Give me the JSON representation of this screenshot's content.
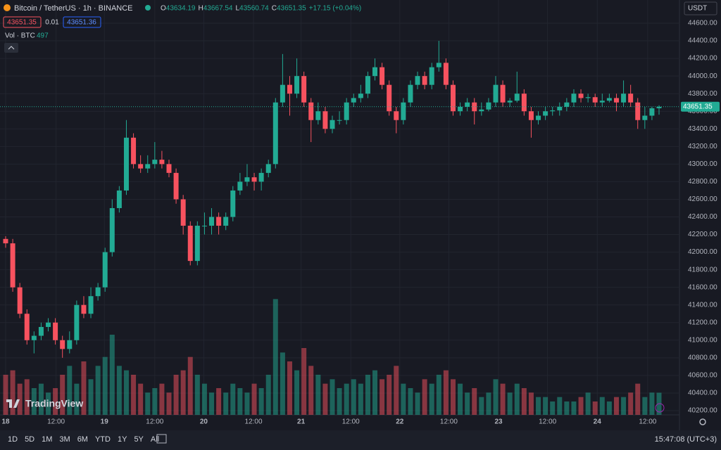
{
  "header": {
    "symbol": "Bitcoin / TetherUS · 1h · BINANCE",
    "ohlc_labels": [
      "O",
      "H",
      "L",
      "C"
    ],
    "change": "+17.15 (+0.04%)",
    "bid": "43651.35",
    "spread": "0.01",
    "ask": "43651.36",
    "volume_label": "Vol · BTC",
    "currency": "USDT"
  },
  "chart_data": {
    "type": "candlestick",
    "up_color": "#22ab94",
    "down_color": "#f7525f",
    "ohlc": [
      [
        42150,
        42180,
        42050,
        42100
      ],
      [
        42100,
        42150,
        41550,
        41600
      ],
      [
        41600,
        41650,
        41250,
        41300
      ],
      [
        41300,
        41350,
        40950,
        41000
      ],
      [
        41000,
        41100,
        40850,
        41050
      ],
      [
        41050,
        41200,
        41000,
        41150
      ],
      [
        41150,
        41250,
        41100,
        41200
      ],
      [
        41200,
        41250,
        40950,
        41000
      ],
      [
        41000,
        41050,
        40800,
        40900
      ],
      [
        40900,
        41100,
        40850,
        41000
      ],
      [
        41000,
        41450,
        40950,
        41400
      ],
      [
        41400,
        41500,
        41250,
        41300
      ],
      [
        41300,
        41600,
        41250,
        41500
      ],
      [
        41500,
        41650,
        41450,
        41600
      ],
      [
        41600,
        42050,
        41550,
        42000
      ],
      [
        42000,
        42600,
        41950,
        42500
      ],
      [
        42500,
        42750,
        42450,
        42700
      ],
      [
        42700,
        43500,
        42650,
        43300
      ],
      [
        43300,
        43350,
        42950,
        43000
      ],
      [
        43000,
        43100,
        42900,
        42950
      ],
      [
        42950,
        43100,
        42900,
        43000
      ],
      [
        43000,
        43250,
        42950,
        43050
      ],
      [
        43050,
        43150,
        42950,
        43000
      ],
      [
        43000,
        43050,
        42850,
        42900
      ],
      [
        42900,
        42950,
        42550,
        42600
      ],
      [
        42600,
        42650,
        42200,
        42300
      ],
      [
        42300,
        42350,
        41850,
        41900
      ],
      [
        41900,
        42350,
        41850,
        42300
      ],
      [
        42300,
        42450,
        42200,
        42300
      ],
      [
        42300,
        42500,
        42200,
        42400
      ],
      [
        42400,
        42450,
        42200,
        42300
      ],
      [
        42300,
        42450,
        42250,
        42400
      ],
      [
        42400,
        42750,
        42350,
        42700
      ],
      [
        42700,
        42900,
        42650,
        42800
      ],
      [
        42800,
        43000,
        42750,
        42850
      ],
      [
        42850,
        42900,
        42700,
        42800
      ],
      [
        42800,
        42950,
        42700,
        42900
      ],
      [
        42900,
        43050,
        42850,
        43000
      ],
      [
        43000,
        43750,
        42950,
        43700
      ],
      [
        43700,
        44250,
        43650,
        43900
      ],
      [
        43900,
        44000,
        43550,
        43800
      ],
      [
        43800,
        44200,
        43750,
        44000
      ],
      [
        44000,
        44050,
        43650,
        43700
      ],
      [
        43700,
        43750,
        43250,
        43500
      ],
      [
        43500,
        43700,
        43450,
        43600
      ],
      [
        43600,
        43650,
        43350,
        43400
      ],
      [
        43400,
        43550,
        43350,
        43500
      ],
      [
        43500,
        43600,
        43450,
        43500
      ],
      [
        43500,
        43750,
        43450,
        43700
      ],
      [
        43700,
        43800,
        43650,
        43750
      ],
      [
        43750,
        43900,
        43700,
        43800
      ],
      [
        43800,
        44050,
        43750,
        44000
      ],
      [
        44000,
        44200,
        43950,
        44100
      ],
      [
        44100,
        44150,
        43850,
        43900
      ],
      [
        43900,
        43950,
        43550,
        43600
      ],
      [
        43600,
        43650,
        43350,
        43500
      ],
      [
        43500,
        43750,
        43450,
        43700
      ],
      [
        43700,
        43950,
        43650,
        43900
      ],
      [
        43900,
        44050,
        43850,
        44000
      ],
      [
        44000,
        44050,
        43850,
        43900
      ],
      [
        43900,
        44150,
        43850,
        44100
      ],
      [
        44100,
        44400,
        44050,
        44150
      ],
      [
        44150,
        44200,
        43850,
        43900
      ],
      [
        43900,
        43950,
        43550,
        43600
      ],
      [
        43600,
        43700,
        43550,
        43650
      ],
      [
        43650,
        43750,
        43600,
        43700
      ],
      [
        43700,
        43750,
        43450,
        43600
      ],
      [
        43600,
        43700,
        43550,
        43620
      ],
      [
        43620,
        43750,
        43600,
        43700
      ],
      [
        43700,
        44000,
        43650,
        43900
      ],
      [
        43900,
        43950,
        43650,
        43700
      ],
      [
        43700,
        43750,
        43650,
        43720
      ],
      [
        43720,
        44050,
        43700,
        43800
      ],
      [
        43800,
        43850,
        43550,
        43600
      ],
      [
        43600,
        43650,
        43300,
        43500
      ],
      [
        43500,
        43600,
        43450,
        43550
      ],
      [
        43550,
        43650,
        43500,
        43600
      ],
      [
        43600,
        43650,
        43550,
        43610
      ],
      [
        43610,
        43700,
        43550,
        43650
      ],
      [
        43650,
        43750,
        43600,
        43700
      ],
      [
        43700,
        43850,
        43650,
        43800
      ],
      [
        43800,
        43850,
        43700,
        43750
      ],
      [
        43750,
        43800,
        43700,
        43760
      ],
      [
        43760,
        43800,
        43650,
        43700
      ],
      [
        43700,
        43800,
        43650,
        43720
      ],
      [
        43720,
        43800,
        43700,
        43750
      ],
      [
        43750,
        43800,
        43600,
        43700
      ],
      [
        43700,
        43950,
        43650,
        43800
      ],
      [
        43800,
        43900,
        43650,
        43700
      ],
      [
        43700,
        43750,
        43400,
        43500
      ],
      [
        43500,
        43650,
        43400,
        43550
      ],
      [
        43550,
        43650,
        43500,
        43634.19
      ],
      [
        43634.19,
        43667.54,
        43560.74,
        43651.35
      ]
    ],
    "volume": [
      900,
      1000,
      700,
      800,
      600,
      700,
      500,
      600,
      900,
      1100,
      700,
      1200,
      800,
      1100,
      1300,
      1800,
      1100,
      1000,
      900,
      700,
      500,
      600,
      700,
      500,
      900,
      1000,
      1300,
      900,
      700,
      500,
      600,
      500,
      700,
      600,
      500,
      700,
      600,
      900,
      2600,
      1400,
      1200,
      1000,
      1500,
      1100,
      900,
      700,
      800,
      600,
      700,
      800,
      700,
      900,
      1000,
      800,
      900,
      1100,
      700,
      600,
      500,
      800,
      700,
      900,
      1000,
      800,
      700,
      500,
      600,
      400,
      500,
      800,
      700,
      500,
      700,
      600,
      500,
      400,
      400,
      300,
      400,
      300,
      300,
      400,
      500,
      300,
      400,
      300,
      400,
      400,
      500,
      700,
      400,
      500,
      497
    ],
    "vol_lim": [
      0,
      3000
    ],
    "ylim": [
      40120,
      44680
    ],
    "yticks": [
      {
        "value": 40200,
        "label": "40200.00"
      },
      {
        "value": 40400,
        "label": "40400.00"
      },
      {
        "value": 40600,
        "label": "40600.00"
      },
      {
        "value": 40800,
        "label": "40800.00"
      },
      {
        "value": 41000,
        "label": "41000.00"
      },
      {
        "value": 41200,
        "label": "41200.00"
      },
      {
        "value": 41400,
        "label": "41400.00"
      },
      {
        "value": 41600,
        "label": "41600.00"
      },
      {
        "value": 41800,
        "label": "41800.00"
      },
      {
        "value": 42000,
        "label": "42000.00"
      },
      {
        "value": 42200,
        "label": "42200.00"
      },
      {
        "value": 42400,
        "label": "42400.00"
      },
      {
        "value": 42600,
        "label": "42600.00"
      },
      {
        "value": 42800,
        "label": "42800.00"
      },
      {
        "value": 43000,
        "label": "43000.00"
      },
      {
        "value": 43200,
        "label": "43200.00"
      },
      {
        "value": 43400,
        "label": "43400.00"
      },
      {
        "value": 43600,
        "label": "43600.00"
      },
      {
        "value": 43800,
        "label": "43800.00"
      },
      {
        "value": 44000,
        "label": "44000.00"
      },
      {
        "value": 44200,
        "label": "44200.00"
      },
      {
        "value": 44400,
        "label": "44400.00"
      },
      {
        "value": 44600,
        "label": "44600.00"
      }
    ],
    "xticks": [
      {
        "value": 0,
        "label": "18"
      },
      {
        "value": 7.1,
        "label": "12:00"
      },
      {
        "value": 13.9,
        "label": "19"
      },
      {
        "value": 21,
        "label": "12:00"
      },
      {
        "value": 27.9,
        "label": "20"
      },
      {
        "value": 34.9,
        "label": "12:00"
      },
      {
        "value": 41.6,
        "label": "21"
      },
      {
        "value": 48.6,
        "label": "12:00"
      },
      {
        "value": 55.5,
        "label": "22"
      },
      {
        "value": 62.4,
        "label": "12:00"
      },
      {
        "value": 69.4,
        "label": "23"
      },
      {
        "value": 76.3,
        "label": "12:00"
      },
      {
        "value": 83.3,
        "label": "24"
      },
      {
        "value": 90.4,
        "label": "12:00"
      }
    ],
    "grid": true
  },
  "footer": {
    "ranges": [
      "1D",
      "5D",
      "1M",
      "3M",
      "6M",
      "YTD",
      "1Y",
      "5Y",
      "All"
    ],
    "clock": "15:47:08 (UTC+3)",
    "logo": "TradingView"
  }
}
